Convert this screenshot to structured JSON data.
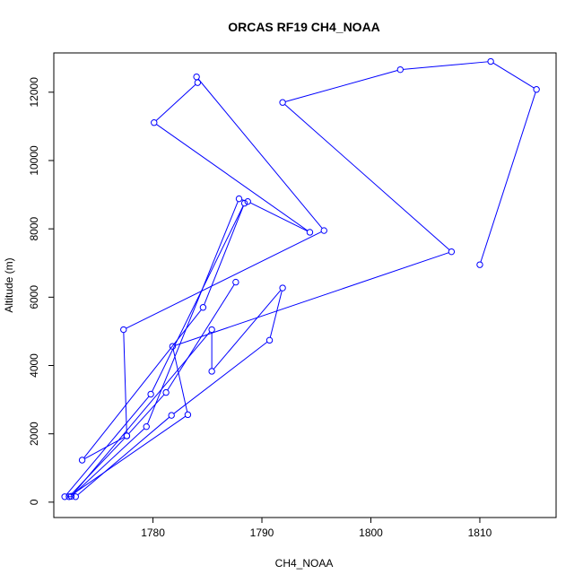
{
  "chart_data": {
    "type": "line",
    "title": "ORCAS RF19 CH4_NOAA",
    "xlabel": "CH4_NOAA",
    "ylabel": "Altitude (m)",
    "xlim": [
      1770.9,
      1817.0
    ],
    "ylim": [
      -450,
      13150
    ],
    "x_ticks": [
      1780,
      1790,
      1800,
      1810
    ],
    "y_ticks": [
      0,
      2000,
      4000,
      6000,
      8000,
      10000,
      12000
    ],
    "grid": false,
    "legend": "none",
    "series_color": "#0000ff",
    "markers": "open-circle",
    "series": [
      {
        "x": [
          1810.0,
          1815.2,
          1811.0,
          1802.7,
          1791.9,
          1807.4,
          1781.8,
          1783.2,
          1772.3,
          1777.6,
          1777.3,
          1795.7,
          1784.0,
          1784.1,
          1780.1,
          1794.4,
          1788.7,
          1787.9,
          1779.4,
          1772.5,
          1785.4,
          1785.4,
          1791.9,
          1790.7,
          1781.7,
          1772.9,
          1771.9,
          1779.8,
          1788.4,
          1784.6,
          1773.5,
          1777.6,
          1781.2,
          1787.6
        ],
        "y": [
          6950,
          12080,
          12900,
          12660,
          11700,
          7330,
          4560,
          2560,
          160,
          1940,
          5050,
          7950,
          12450,
          12280,
          11110,
          7900,
          8800,
          8880,
          2210,
          170,
          5050,
          3830,
          6270,
          4740,
          2540,
          160,
          160,
          3160,
          8750,
          5700,
          1230,
          1940,
          3210,
          6440
        ]
      }
    ]
  }
}
